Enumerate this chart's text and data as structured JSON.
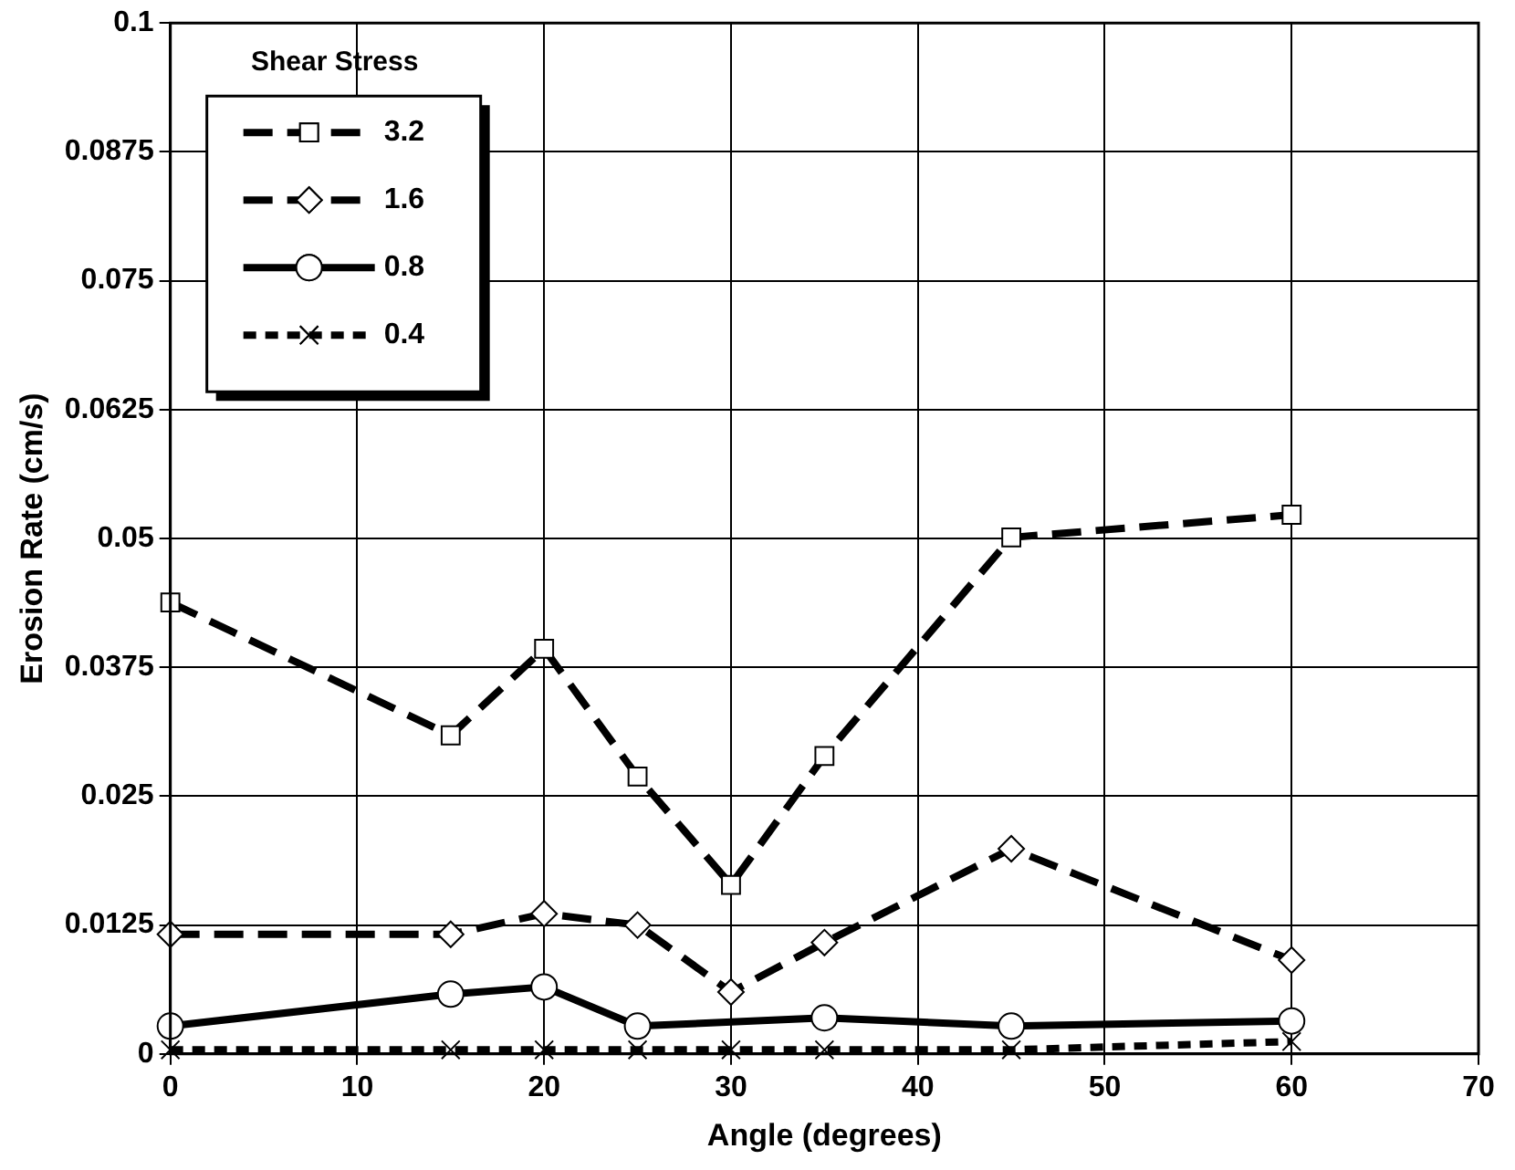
{
  "chart_data": {
    "type": "line",
    "xlabel": "Angle (degrees)",
    "ylabel": "Erosion Rate (cm/s)",
    "legend_title": "Shear Stress",
    "legend": "top left",
    "grid": true,
    "xlim": [
      0,
      70
    ],
    "xticks": [
      0,
      10,
      20,
      30,
      40,
      50,
      60,
      70
    ],
    "ylim": [
      0,
      0.1
    ],
    "yticks": [
      0,
      0.0125,
      0.025,
      0.0375,
      0.05,
      0.0625,
      0.075,
      0.0875,
      0.1
    ],
    "series": [
      {
        "name": "3.2",
        "color": "#000000",
        "marker": "square",
        "line_style": "dashed",
        "x": [
          0,
          15,
          20,
          25,
          30,
          35,
          45,
          60
        ],
        "values": [
          0.0438,
          0.0309,
          0.0393,
          0.0269,
          0.0164,
          0.0289,
          0.0501,
          0.0523
        ]
      },
      {
        "name": "1.6",
        "color": "#000000",
        "marker": "diamond",
        "line_style": "dashed",
        "x": [
          0,
          15,
          20,
          25,
          30,
          35,
          45,
          60
        ],
        "values": [
          0.0116,
          0.0116,
          0.0136,
          0.0125,
          0.006,
          0.0108,
          0.0199,
          0.0091
        ]
      },
      {
        "name": "0.8",
        "color": "#000000",
        "marker": "circle",
        "line_style": "solid",
        "x": [
          0,
          15,
          20,
          25,
          35,
          45,
          60
        ],
        "values": [
          0.0027,
          0.0058,
          0.0065,
          0.0027,
          0.0035,
          0.0027,
          0.0032
        ]
      },
      {
        "name": "0.4",
        "color": "#000000",
        "marker": "cross",
        "line_style": "dotted",
        "x": [
          0,
          15,
          20,
          25,
          30,
          35,
          45,
          60
        ],
        "values": [
          0.0004,
          0.0004,
          0.0004,
          0.0004,
          0.0004,
          0.0004,
          0.0004,
          0.0012
        ]
      }
    ]
  }
}
